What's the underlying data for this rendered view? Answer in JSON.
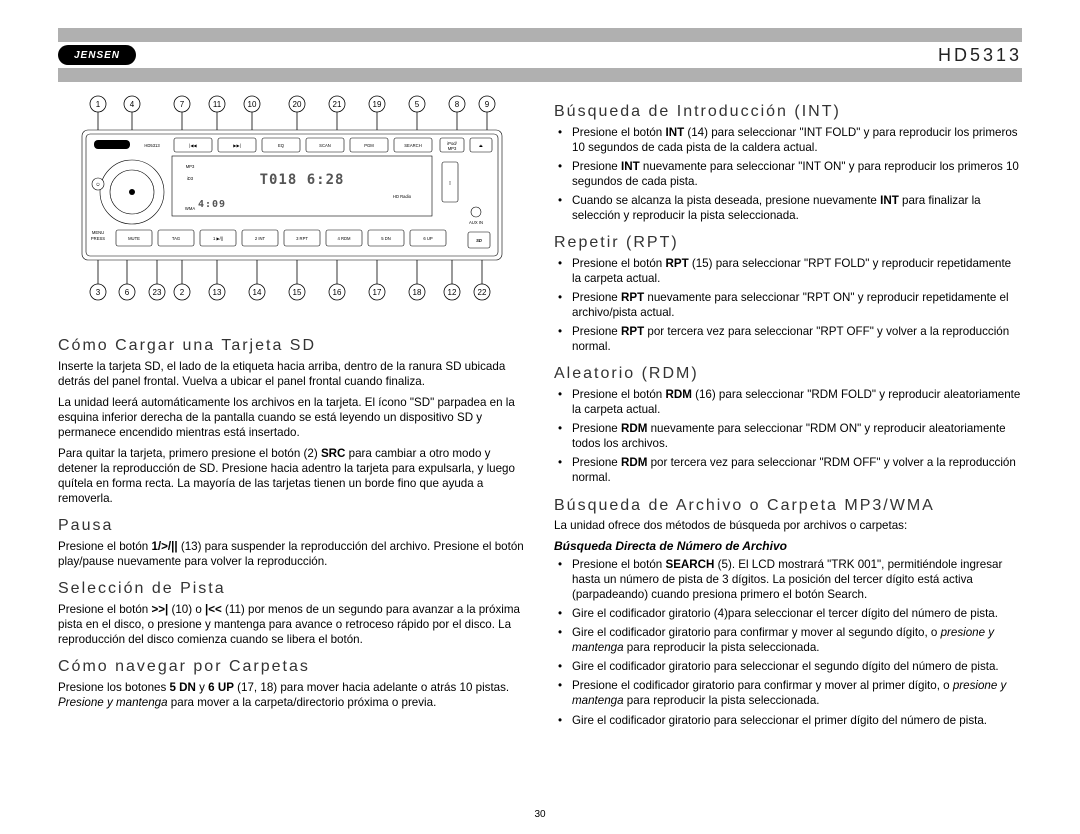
{
  "header": {
    "brand": "JENSEN",
    "model": "HD5313"
  },
  "page_number": "30",
  "diagram": {
    "top_callouts": [
      "1",
      "4",
      "7",
      "11",
      "10",
      "20",
      "21",
      "19",
      "5",
      "8",
      "9"
    ],
    "bottom_callouts": [
      "3",
      "6",
      "23",
      "2",
      "13",
      "14",
      "15",
      "16",
      "17",
      "18",
      "12",
      "22"
    ],
    "face": {
      "brand": "JENSEN",
      "model_small": "HD5313",
      "lcd_main": "T018  6:28",
      "lcd_sub": "4:09",
      "top_buttons": [
        "|◀◀",
        "▶▶|",
        "EQ",
        "SCAN",
        "PGM",
        "SEARCH"
      ],
      "bottom_buttons": [
        "MUTE",
        "TAG",
        "1 ▶/||",
        "2 INT",
        "3 RPT",
        "4 RDM",
        "5 DN",
        "6 UP"
      ],
      "right_labels": [
        "iPod/\nMP3",
        "⏏"
      ],
      "aux": "AUX IN",
      "menu": "MENU\nPRESS",
      "badges": [
        "HD Radio",
        "iD3",
        "WMA",
        "MP3"
      ],
      "sd": "SD"
    }
  },
  "left_col": {
    "s1": {
      "title": "Cómo Cargar una Tarjeta SD",
      "p1": "Inserte la tarjeta SD, el lado de la etiqueta hacia arriba, dentro de la ranura SD ubicada detrás del panel frontal. Vuelva a ubicar el panel frontal cuando finaliza.",
      "p2": "La unidad leerá automáticamente los archivos en la tarjeta. El ícono \"SD\" parpadea en la esquina inferior derecha de la pantalla cuando se está leyendo un dispositivo SD y permanece encendido mientras está insertado.",
      "p3_a": "Para quitar la tarjeta, primero presione el botón (2) ",
      "p3_b": "SRC",
      "p3_c": " para cambiar a otro modo y detener la reproducción de SD. Presione hacia adentro la tarjeta para expulsarla, y luego quítela en forma recta. La mayoría de las tarjetas tienen un borde fino que ayuda a removerla."
    },
    "s2": {
      "title": "Pausa",
      "p_a": "Presione el botón ",
      "p_b": "1/>/||",
      "p_c": " (13) para suspender la reproducción del archivo. Presione el botón play/pause nuevamente para volver la reproducción."
    },
    "s3": {
      "title": "Selección de Pista",
      "p_a": "Presione el botón ",
      "p_b": ">>|",
      "p_c": " (10) o ",
      "p_d": "|<<",
      "p_e": " (11) por menos de un segundo para avanzar a la próxima pista en el disco, o presione y mantenga para avance o retroceso rápido por el disco. La reproducción del disco comienza cuando se libera el botón."
    },
    "s4": {
      "title": "Cómo navegar por Carpetas",
      "p_a": "Presione los botones ",
      "p_b": "5 DN",
      "p_c": " y ",
      "p_d": "6 UP",
      "p_e": " (17, 18) para mover hacia adelante o atrás 10 pistas. ",
      "p_f": "Presione y mantenga",
      "p_g": " para mover a la carpeta/directorio próxima o previa."
    }
  },
  "right_col": {
    "s1": {
      "title": "Búsqueda de Introducción (INT)",
      "b1_a": "Presione el botón ",
      "b1_b": "INT",
      "b1_c": " (14) para seleccionar \"INT FOLD\" y para reproducir los primeros 10 segundos de cada pista de la caldera actual.",
      "b2_a": "Presione ",
      "b2_b": "INT",
      "b2_c": " nuevamente para seleccionar \"INT ON\" y para reproducir los primeros 10 segundos de cada pista.",
      "b3_a": "Cuando se alcanza la pista deseada, presione nuevamente ",
      "b3_b": "INT",
      "b3_c": " para finalizar la selección y reproducir la pista seleccionada."
    },
    "s2": {
      "title": "Repetir (RPT)",
      "b1_a": "Presione el botón ",
      "b1_b": "RPT",
      "b1_c": " (15) para seleccionar \"RPT FOLD\" y reproducir repetidamente la carpeta actual.",
      "b2_a": "Presione ",
      "b2_b": "RPT",
      "b2_c": " nuevamente para seleccionar \"RPT ON\" y reproducir repetidamente el archivo/pista actual.",
      "b3_a": "Presione ",
      "b3_b": "RPT",
      "b3_c": " por tercera vez para seleccionar \"RPT OFF\" y volver a la reproducción normal."
    },
    "s3": {
      "title": "Aleatorio (RDM)",
      "b1_a": "Presione el botón ",
      "b1_b": "RDM",
      "b1_c": " (16) para seleccionar \"RDM FOLD\" y reproducir aleatoriamente la carpeta actual.",
      "b2_a": "Presione ",
      "b2_b": "RDM",
      "b2_c": " nuevamente para seleccionar \"RDM ON\" y reproducir aleatoriamente todos los archivos.",
      "b3_a": "Presione ",
      "b3_b": "RDM",
      "b3_c": " por tercera vez para seleccionar \"RDM OFF\" y volver a la reproducción normal."
    },
    "s4": {
      "title": "Búsqueda de Archivo o Carpeta MP3/WMA",
      "intro": "La unidad ofrece dos métodos de búsqueda por archivos o carpetas:",
      "subhead": "Búsqueda Directa de Número de Archivo",
      "b1_a": "Presione el botón ",
      "b1_b": "SEARCH",
      "b1_c": " (5). El LCD mostrará \"TRK 001\", permitiéndole ingresar hasta un número de pista de 3 dígitos. La posición del tercer dígito está activa (parpadeando) cuando presiona primero el botón Search.",
      "b2": "Gire el codificador giratorio (4)para seleccionar el tercer dígito del número de pista.",
      "b3_a": "Gire el codificador giratorio para confirmar y mover al segundo dígito, o ",
      "b3_b": "presione y mantenga",
      "b3_c": " para reproducir la pista seleccionada.",
      "b4": "Gire el codificador giratorio para seleccionar el segundo dígito del número de pista.",
      "b5_a": "Presione el codificador giratorio para confirmar y mover al primer dígito, o ",
      "b5_b": "presione y mantenga",
      "b5_c": " para reproducir la pista seleccionada.",
      "b6": "Gire el codificador giratorio para seleccionar el primer dígito del número de pista."
    }
  }
}
